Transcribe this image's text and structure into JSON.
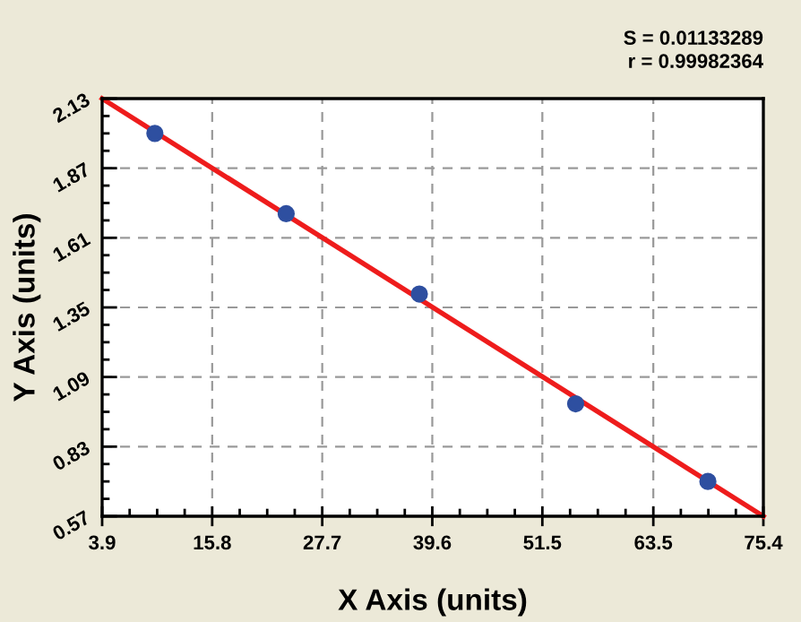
{
  "chart_data": {
    "type": "scatter",
    "xlabel": "X Axis (units)",
    "ylabel": "Y Axis (units)",
    "annotations": [
      "S = 0.01133289",
      "r = 0.99982364"
    ],
    "x": [
      9.6,
      23.8,
      38.2,
      55.1,
      69.4
    ],
    "series": [
      {
        "color": "#2e4fa0",
        "values": [
          2.0,
          1.7,
          1.4,
          0.99,
          0.7
        ],
        "marker": "circle"
      },
      {
        "type": "line",
        "color": "#ee1c1c",
        "x": [
          3.9,
          75.4
        ],
        "values": [
          2.13,
          0.57
        ],
        "line_style": "solid"
      }
    ],
    "xlim": [
      3.9,
      75.4
    ],
    "xticks": [
      3.9,
      15.8,
      27.7,
      39.6,
      51.5,
      63.5,
      75.4
    ],
    "ylim": [
      0.57,
      2.13
    ],
    "yticks": [
      0.57,
      0.83,
      1.09,
      1.35,
      1.61,
      1.87,
      2.13
    ],
    "grid": true,
    "legend": false
  }
}
